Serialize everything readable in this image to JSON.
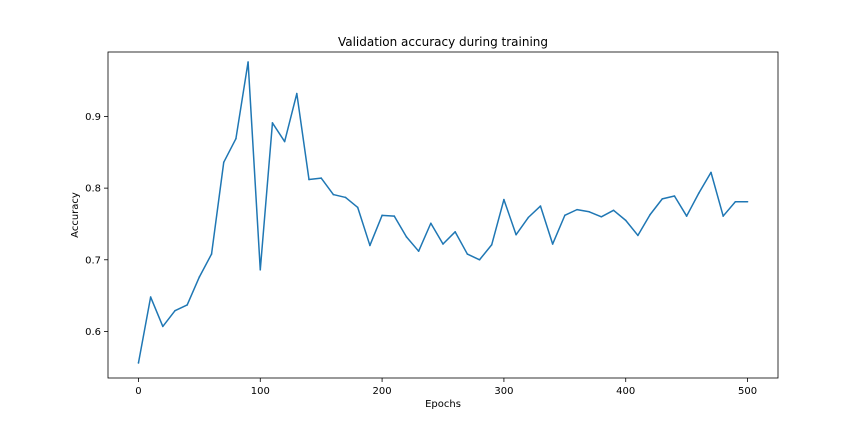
{
  "chart_data": {
    "type": "line",
    "title": "Validation accuracy during training",
    "xlabel": "Epochs",
    "ylabel": "Accuracy",
    "xlim": [
      -25,
      525
    ],
    "ylim": [
      0.535,
      0.99
    ],
    "xticks": [
      0,
      100,
      200,
      300,
      400,
      500
    ],
    "yticks": [
      0.6,
      0.7,
      0.8,
      0.9
    ],
    "grid": false,
    "line_color": "#1f77b4",
    "series": [
      {
        "x": [
          0,
          10,
          20,
          30,
          40,
          50,
          60,
          70,
          80,
          90,
          100,
          110,
          120,
          130,
          140,
          150,
          160,
          170,
          180,
          190,
          200,
          210,
          220,
          230,
          240,
          250,
          260,
          270,
          280,
          290,
          300,
          310,
          320,
          330,
          340,
          350,
          360,
          370,
          380,
          390,
          400,
          410,
          420,
          430,
          440,
          450,
          460,
          470,
          480,
          490,
          500
        ],
        "values": [
          0.556,
          0.648,
          0.607,
          0.629,
          0.637,
          0.676,
          0.708,
          0.836,
          0.869,
          0.976,
          0.686,
          0.891,
          0.865,
          0.932,
          0.812,
          0.814,
          0.791,
          0.787,
          0.773,
          0.72,
          0.762,
          0.761,
          0.732,
          0.712,
          0.751,
          0.722,
          0.739,
          0.708,
          0.7,
          0.721,
          0.784,
          0.735,
          0.759,
          0.775,
          0.722,
          0.762,
          0.77,
          0.767,
          0.76,
          0.769,
          0.755,
          0.734,
          0.763,
          0.785,
          0.789,
          0.761,
          0.793,
          0.822,
          0.761,
          0.781,
          0.781
        ]
      }
    ]
  }
}
